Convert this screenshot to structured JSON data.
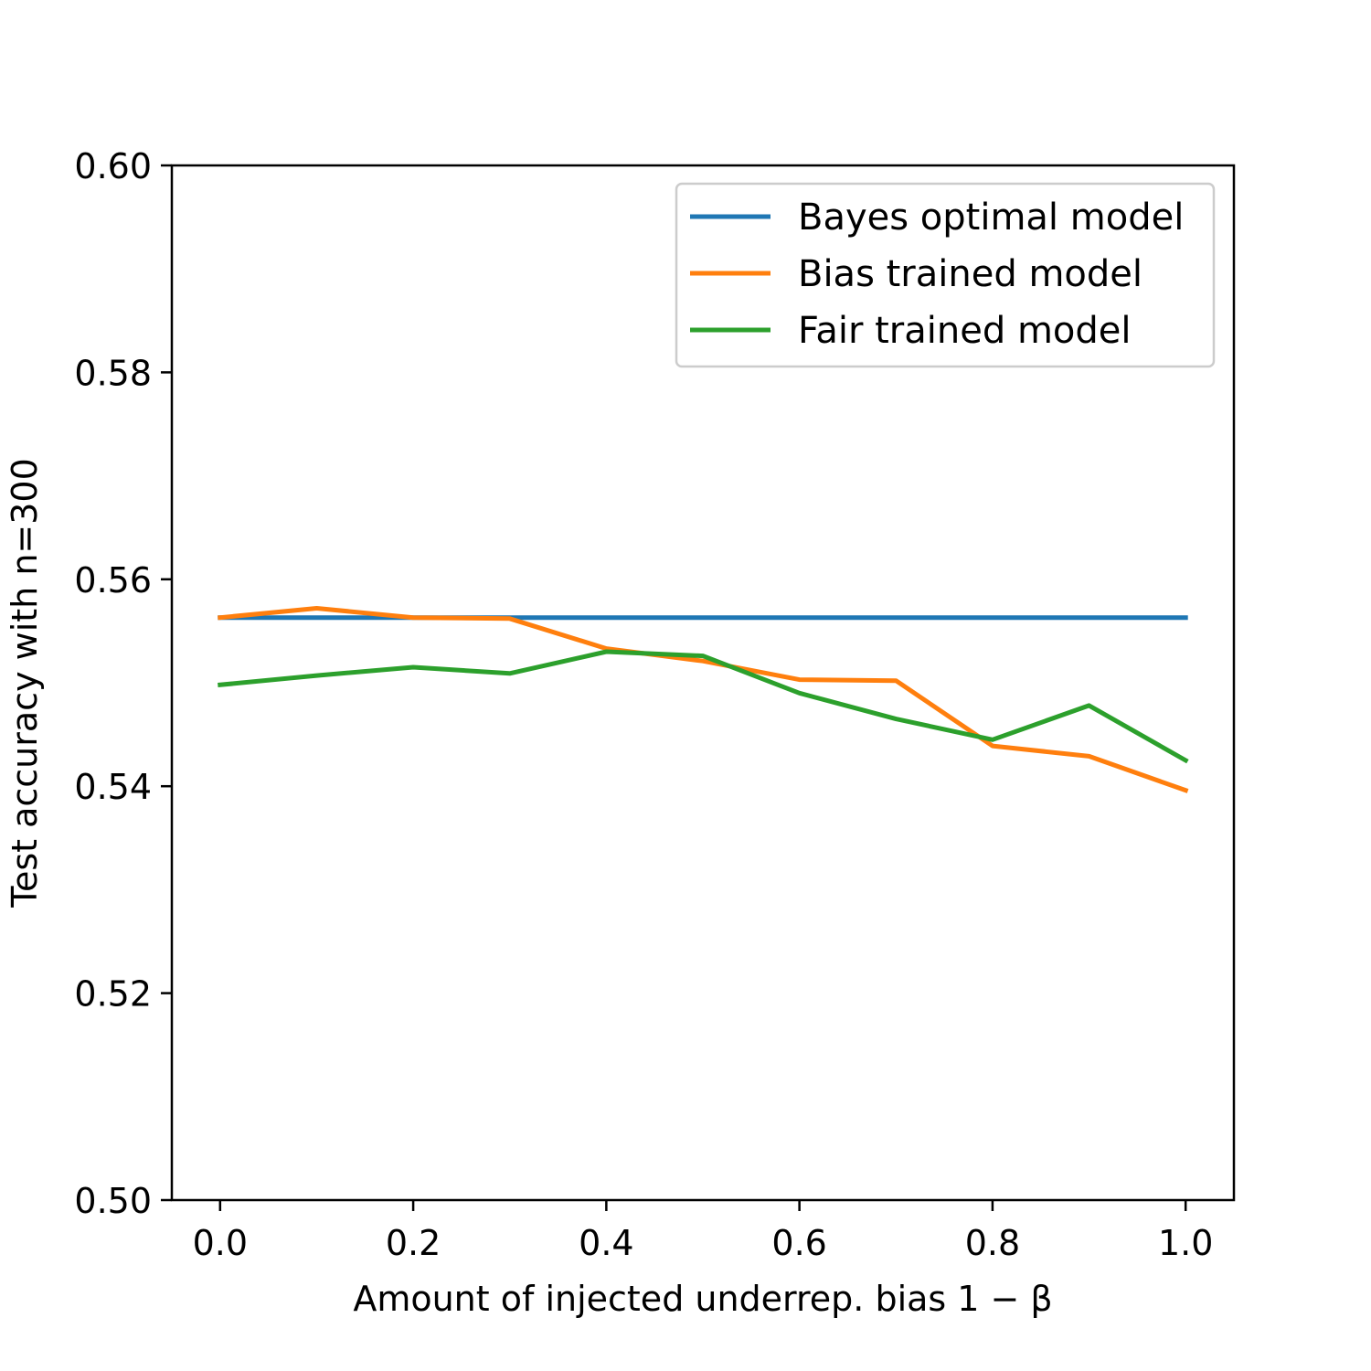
{
  "chart_data": {
    "type": "line",
    "title": "",
    "xlabel": "Amount of injected underrep. bias",
    "xlabel_math": "1 − β",
    "ylabel": "Test accuracy with n=300",
    "x": [
      0.0,
      0.1,
      0.2,
      0.3,
      0.4,
      0.5,
      0.6,
      0.7,
      0.8,
      0.9,
      1.0
    ],
    "xlim": [
      -0.05,
      1.05
    ],
    "ylim": [
      0.5,
      0.6
    ],
    "xticks": [
      "0.0",
      "0.2",
      "0.4",
      "0.6",
      "0.8",
      "1.0"
    ],
    "xtick_values": [
      0.0,
      0.2,
      0.4,
      0.6,
      0.8,
      1.0
    ],
    "yticks": [
      "0.50",
      "0.52",
      "0.54",
      "0.56",
      "0.58",
      "0.60"
    ],
    "ytick_values": [
      0.5,
      0.52,
      0.54,
      0.56,
      0.58,
      0.6
    ],
    "grid": false,
    "legend_position": "top-right",
    "series": [
      {
        "name": "Bayes optimal model",
        "color": "#1f77b4",
        "values": [
          0.5563,
          0.5563,
          0.5563,
          0.5563,
          0.5563,
          0.5563,
          0.5563,
          0.5563,
          0.5563,
          0.5563,
          0.5563
        ]
      },
      {
        "name": "Bias trained model",
        "color": "#ff7f0e",
        "values": [
          0.5563,
          0.5572,
          0.5563,
          0.5562,
          0.5533,
          0.5521,
          0.5503,
          0.5502,
          0.5439,
          0.5429,
          0.5396
        ]
      },
      {
        "name": "Fair trained model",
        "color": "#2ca02c",
        "values": [
          0.5498,
          0.5507,
          0.5515,
          0.5509,
          0.553,
          0.5526,
          0.549,
          0.5465,
          0.5445,
          0.5478,
          0.5425
        ]
      }
    ]
  }
}
